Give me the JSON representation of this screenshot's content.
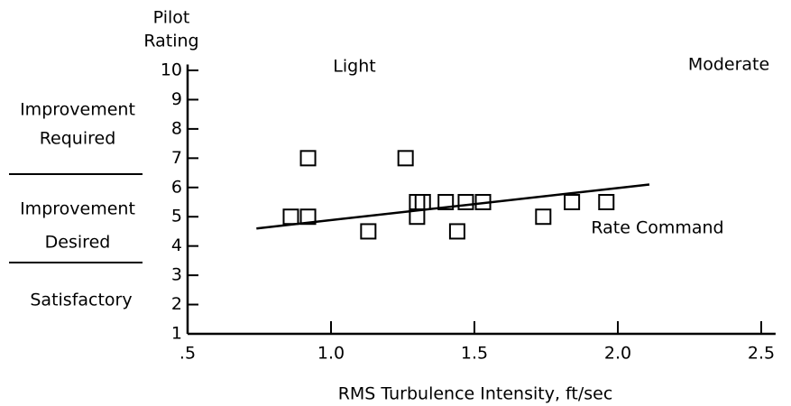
{
  "chart_data": {
    "type": "scatter",
    "y_label": [
      "Pilot",
      "Rating"
    ],
    "x_label": "RMS Turbulence Intensity, ft/sec",
    "annotations": [
      "Light",
      "Moderate",
      "Rate Command"
    ],
    "zones": [
      [
        "Improvement",
        "Required"
      ],
      [
        "Improvement",
        "Desired"
      ],
      [
        "Satisfactory"
      ]
    ],
    "x": [
      0.86,
      0.92,
      0.92,
      1.13,
      1.26,
      1.3,
      1.32,
      1.3,
      1.4,
      1.44,
      1.47,
      1.53,
      1.74,
      1.84,
      1.96
    ],
    "values": [
      5,
      5,
      7,
      4.5,
      7,
      5.5,
      5.5,
      5,
      5.5,
      4.5,
      5.5,
      5.5,
      5,
      5.5,
      5.5
    ],
    "color": "#000000",
    "trend": {
      "x": [
        0.74,
        2.11
      ],
      "values": [
        4.6,
        6.1
      ]
    },
    "xlim": [
      0.5,
      2.55
    ],
    "ylim": [
      1,
      10.2
    ],
    "xticks": [
      {
        "value": 0.5,
        "label": ".5"
      },
      {
        "value": 1,
        "label": "1.0"
      },
      1.5,
      {
        "value": 2,
        "label": "2.0"
      },
      2.5
    ],
    "yticks": [
      1,
      2,
      3,
      4,
      5,
      6,
      7,
      8,
      9,
      10
    ]
  }
}
